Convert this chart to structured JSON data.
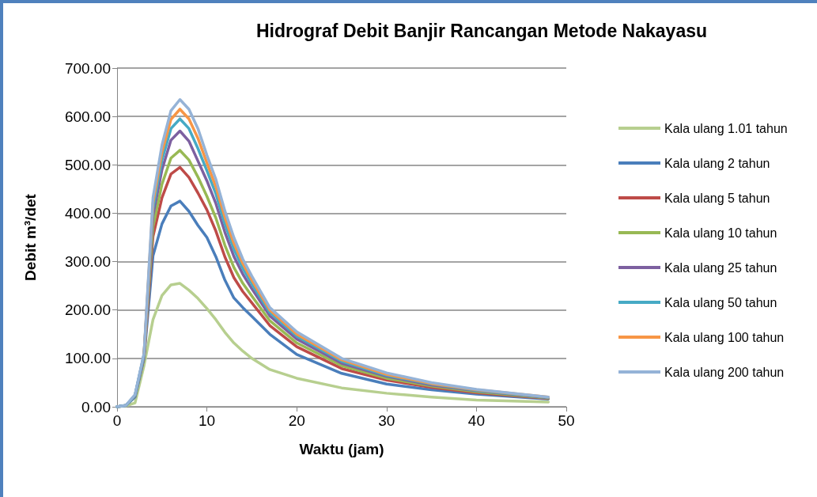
{
  "chart_data": {
    "type": "line",
    "title": "Hidrograf Debit Banjir Rancangan Metode Nakayasu",
    "xlabel": "Waktu (jam)",
    "ylabel": "Debit m³/det",
    "x": [
      0,
      1,
      2,
      3,
      4,
      5,
      6,
      7,
      8,
      9,
      10,
      11,
      12,
      13,
      14,
      15,
      17,
      20,
      25,
      30,
      35,
      40,
      48
    ],
    "series": [
      {
        "name": "Kala ulang 1.01 tahun",
        "color": "#b7cf8f",
        "values": [
          0,
          2,
          8,
          85,
          180,
          230,
          252,
          255,
          241,
          224,
          203,
          180,
          154,
          132,
          115,
          100,
          77,
          59,
          39,
          28,
          20,
          14,
          10
        ]
      },
      {
        "name": "Kala ulang 2 tahun",
        "color": "#4a7ebb",
        "values": [
          0,
          3,
          20,
          100,
          312,
          378,
          415,
          425,
          404,
          375,
          350,
          310,
          262,
          225,
          205,
          187,
          150,
          108,
          69,
          47,
          35,
          26,
          16
        ]
      },
      {
        "name": "Kala ulang 5 tahun",
        "color": "#be4b48",
        "values": [
          null,
          null,
          22,
          103,
          352,
          432,
          481,
          495,
          474,
          442,
          407,
          363,
          310,
          267,
          238,
          215,
          168,
          124,
          79,
          55,
          40,
          29,
          17
        ]
      },
      {
        "name": "Kala ulang 10 tahun",
        "color": "#98b954",
        "values": [
          0,
          3,
          22,
          105,
          372,
          460,
          514,
          530,
          510,
          475,
          435,
          390,
          334,
          288,
          255,
          229,
          178,
          132,
          85,
          59,
          43,
          31,
          18
        ]
      },
      {
        "name": "Kala ulang 25 tahun",
        "color": "#7d60a0",
        "values": [
          0,
          3,
          23,
          107,
          395,
          490,
          551,
          570,
          549,
          508,
          467,
          420,
          361,
          311,
          274,
          244,
          188,
          140,
          90,
          63,
          45,
          33,
          19
        ]
      },
      {
        "name": "Kala ulang 50 tahun",
        "color": "#46aac5",
        "values": [
          0,
          3,
          24,
          108,
          409,
          510,
          575,
          595,
          575,
          534,
          488,
          440,
          378,
          326,
          286,
          254,
          195,
          146,
          94,
          65,
          47,
          34,
          19
        ]
      },
      {
        "name": "Kala ulang 100 tahun",
        "color": "#f79646",
        "values": [
          null,
          null,
          null,
          109,
          421,
          526,
          594,
          615,
          595,
          555,
          504,
          455,
          392,
          338,
          296,
          262,
          200,
          150,
          97,
          67,
          48,
          35,
          20
        ]
      },
      {
        "name": "Kala ulang 200 tahun",
        "color": "#95b3d7",
        "values": [
          0,
          3,
          25,
          110,
          432,
          541,
          612,
          635,
          615,
          575,
          520,
          470,
          405,
          350,
          305,
          270,
          205,
          155,
          100,
          70,
          50,
          36,
          20
        ]
      }
    ],
    "xlim": [
      0,
      50
    ],
    "xticks": [
      0,
      10,
      20,
      30,
      40,
      50
    ],
    "ylim": [
      0,
      700
    ],
    "yticks": [
      {
        "value": 0,
        "label": "0.00"
      },
      {
        "value": 100,
        "label": "100.00"
      },
      {
        "value": 200,
        "label": "200.00"
      },
      {
        "value": 300,
        "label": "300.00"
      },
      {
        "value": 400,
        "label": "400.00"
      },
      {
        "value": 500,
        "label": "500.00"
      },
      {
        "value": 600,
        "label": "600.00"
      },
      {
        "value": 700,
        "label": "700.00"
      }
    ],
    "grid": "y",
    "legend": "right",
    "marker": "none",
    "line_style": "solid"
  }
}
